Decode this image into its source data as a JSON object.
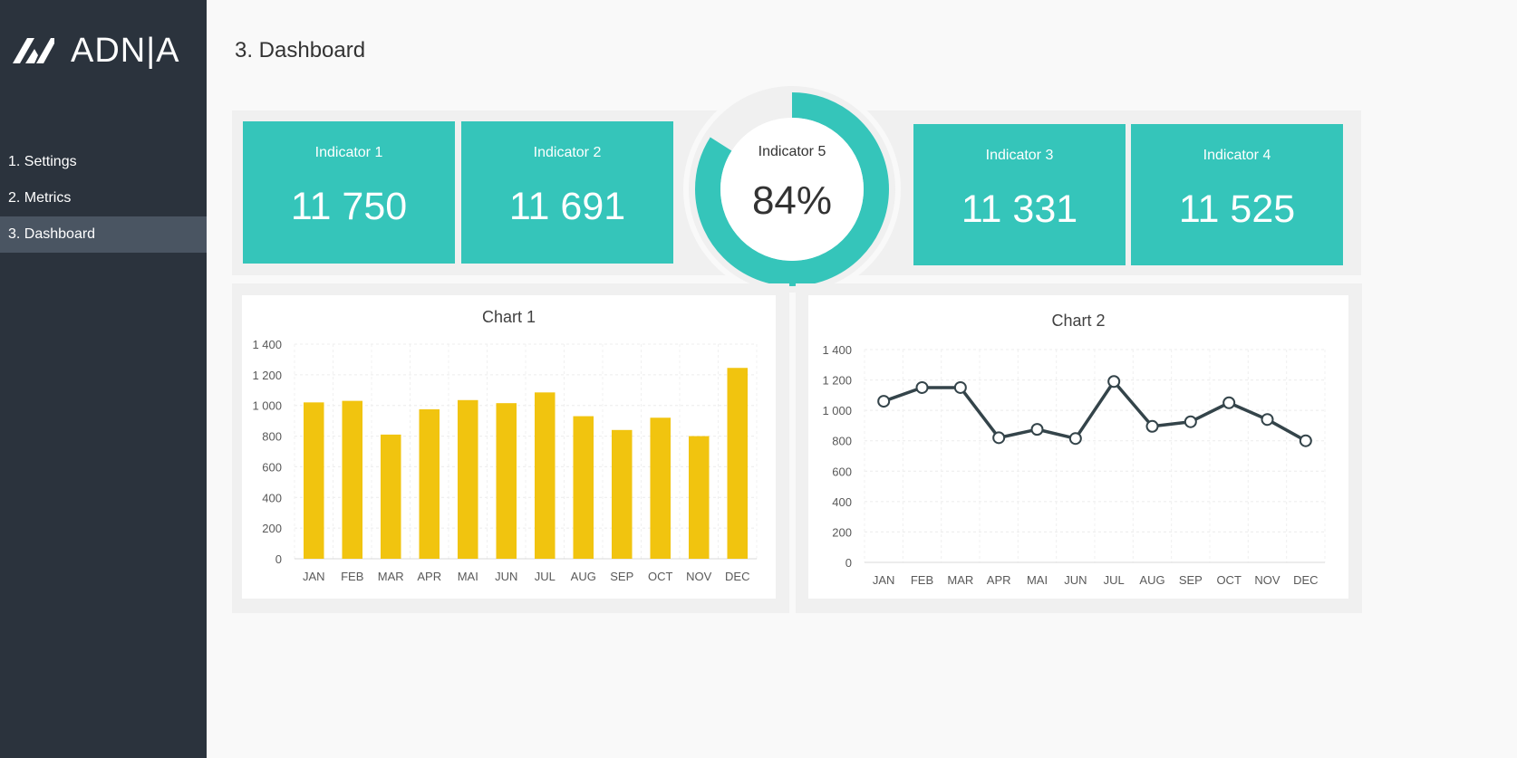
{
  "app": {
    "brand": "ADN|A",
    "logo_icon": "adnia-logo-icon"
  },
  "sidebar": {
    "items": [
      {
        "label": "1. Settings",
        "active": false
      },
      {
        "label": "2. Metrics",
        "active": false
      },
      {
        "label": "3. Dashboard",
        "active": true
      }
    ]
  },
  "page": {
    "title": "3. Dashboard"
  },
  "indicators": [
    {
      "label": "Indicator 1",
      "value": "11 750"
    },
    {
      "label": "Indicator 2",
      "value": "11 691"
    },
    {
      "label": "Indicator 3",
      "value": "11 331"
    },
    {
      "label": "Indicator 4",
      "value": "11 525"
    }
  ],
  "indicator5": {
    "label": "Indicator 5",
    "value": "84%",
    "percent": 84
  },
  "colors": {
    "sidebar_bg": "#2b333d",
    "active_item": "#4a5562",
    "accent_teal": "#35c5ba",
    "bar_yellow": "#f1c40f",
    "line_dark": "#34444a",
    "band_bg": "#f0f0f0"
  },
  "chart_data": [
    {
      "type": "bar",
      "title": "Chart 1",
      "categories": [
        "JAN",
        "FEB",
        "MAR",
        "APR",
        "MAI",
        "JUN",
        "JUL",
        "AUG",
        "SEP",
        "OCT",
        "NOV",
        "DEC"
      ],
      "values": [
        1020,
        1030,
        810,
        975,
        1035,
        1015,
        1085,
        930,
        840,
        920,
        800,
        1245
      ],
      "yticks": [
        "0",
        "200",
        "400",
        "600",
        "800",
        "1 000",
        "1 200",
        "1 400"
      ],
      "ylim": [
        0,
        1400
      ],
      "grid": true
    },
    {
      "type": "line",
      "title": "Chart 2",
      "categories": [
        "JAN",
        "FEB",
        "MAR",
        "APR",
        "MAI",
        "JUN",
        "JUL",
        "AUG",
        "SEP",
        "OCT",
        "NOV",
        "DEC"
      ],
      "values": [
        1060,
        1150,
        1150,
        820,
        875,
        815,
        1190,
        895,
        925,
        1050,
        940,
        800
      ],
      "yticks": [
        "0",
        "200",
        "400",
        "600",
        "800",
        "1 000",
        "1 200",
        "1 400"
      ],
      "ylim": [
        0,
        1400
      ],
      "grid": true
    }
  ]
}
